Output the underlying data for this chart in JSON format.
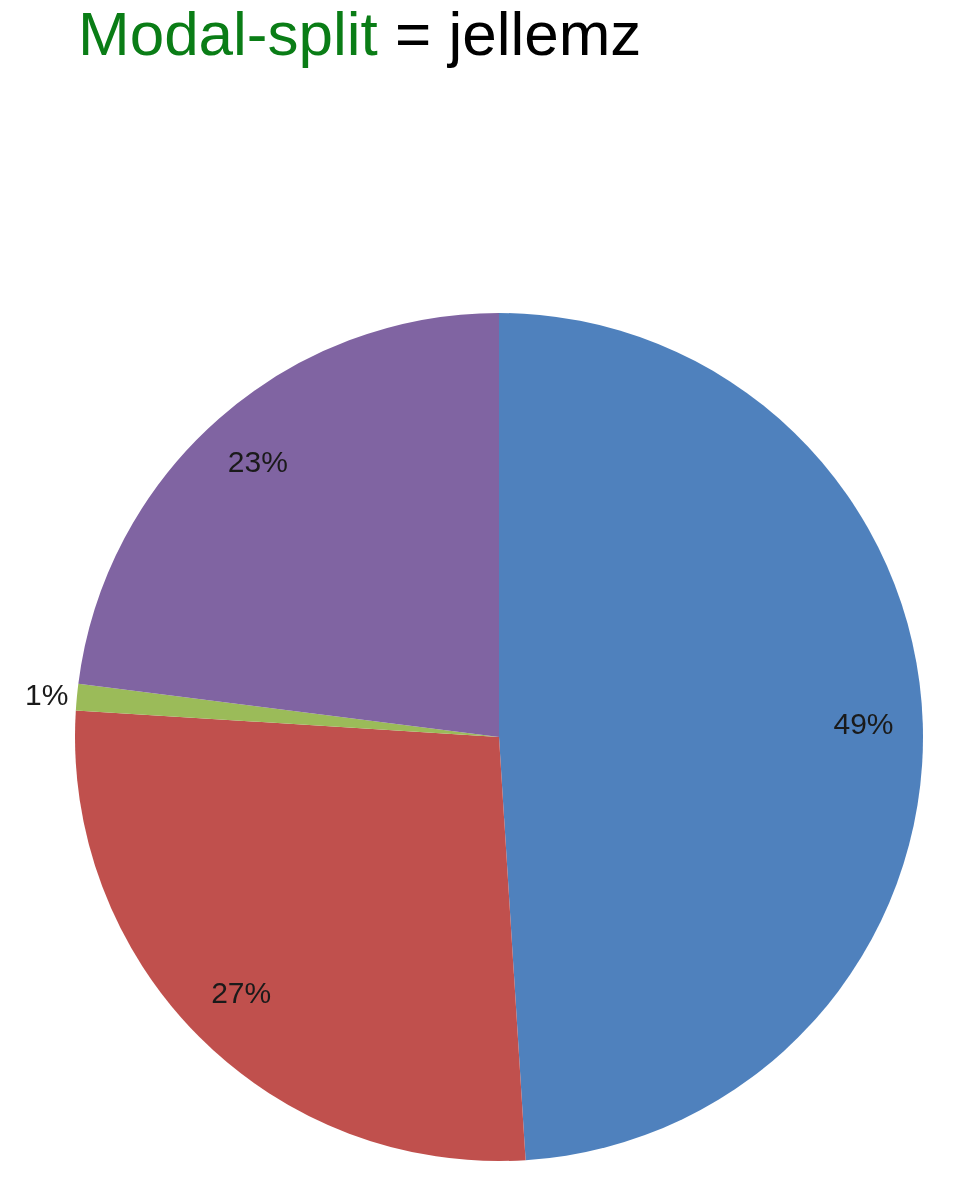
{
  "chart_data": {
    "type": "pie",
    "title": "Modal-split = jellemz",
    "categories": [
      null,
      null,
      null,
      null
    ],
    "values": [
      49,
      27,
      1,
      23
    ],
    "colors": [
      "#4f81bd",
      "#c0504d",
      "#9bbb59",
      "#8064a2"
    ],
    "value_labels": [
      "49%",
      "27%",
      "1%",
      "23%"
    ],
    "legend": false
  }
}
